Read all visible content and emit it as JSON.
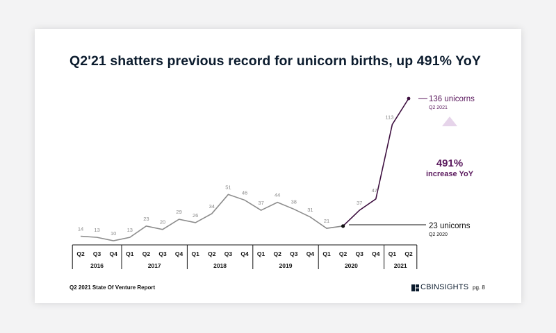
{
  "title": "Q2'21 shatters previous record for unicorn births, up 491% YoY",
  "footer": {
    "report": "Q2 2021 State Of Venture Report",
    "logo": "CBINSIGHTS",
    "page": "pg. 8"
  },
  "colors": {
    "grey_line": "#8c8c8c",
    "purple_line": "#3d0f3f",
    "accent_purple": "#5b1a5e",
    "arrow_fill": "#ece0f0"
  },
  "chart_data": {
    "type": "line",
    "title": "Q2'21 shatters previous record for unicorn births, up 491% YoY",
    "x": [
      "Q2 2016",
      "Q3 2016",
      "Q4 2016",
      "Q1 2017",
      "Q2 2017",
      "Q3 2017",
      "Q4 2017",
      "Q1 2018",
      "Q2 2018",
      "Q3 2018",
      "Q4 2018",
      "Q1 2019",
      "Q2 2019",
      "Q3 2019",
      "Q4 2019",
      "Q1 2020",
      "Q2 2020",
      "Q3 2020",
      "Q4 2020",
      "Q1 2021",
      "Q2 2021"
    ],
    "values": [
      14,
      13,
      10,
      13,
      23,
      20,
      29,
      26,
      34,
      51,
      46,
      37,
      44,
      38,
      31,
      21,
      23,
      37,
      47,
      113,
      136
    ],
    "quarter_labels": [
      "Q2",
      "Q3",
      "Q4",
      "Q1",
      "Q2",
      "Q3",
      "Q4",
      "Q1",
      "Q2",
      "Q3",
      "Q4",
      "Q1",
      "Q2",
      "Q3",
      "Q4",
      "Q1",
      "Q2",
      "Q3",
      "Q4",
      "Q1",
      "Q2"
    ],
    "year_groups": [
      {
        "label": "2016",
        "count": 3
      },
      {
        "label": "2017",
        "count": 4
      },
      {
        "label": "2018",
        "count": 4
      },
      {
        "label": "2019",
        "count": 4
      },
      {
        "label": "2020",
        "count": 4
      },
      {
        "label": "2021",
        "count": 2
      }
    ],
    "highlight_start_index": 16,
    "ylim": [
      0,
      140
    ],
    "annotations": {
      "end_value": "136 unicorns",
      "end_quarter": "Q2 2021",
      "start_value": "23 unicorns",
      "start_quarter": "Q2 2020",
      "growth": "491%",
      "growth_label": "increase YoY"
    }
  }
}
